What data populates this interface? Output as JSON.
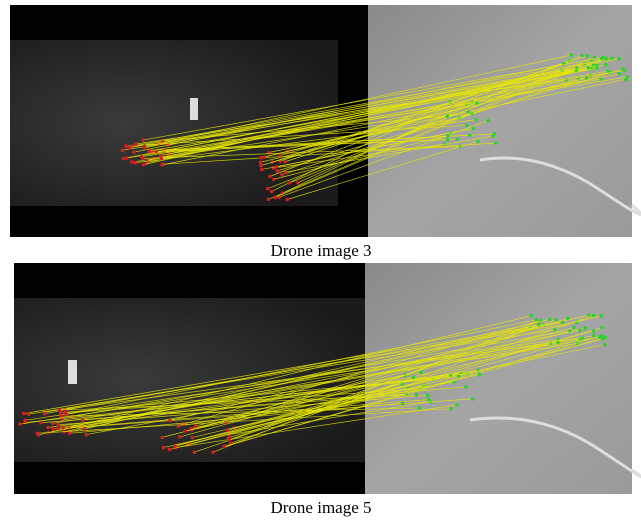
{
  "figures": [
    {
      "caption": "Drone image 3"
    },
    {
      "caption": "Drone image 5"
    }
  ]
}
